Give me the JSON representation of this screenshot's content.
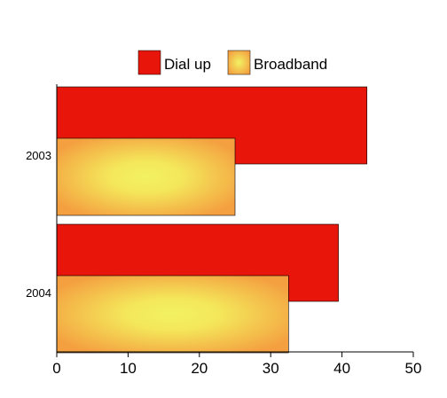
{
  "chart_data": {
    "type": "bar",
    "orientation": "horizontal",
    "categories": [
      "2003",
      "2004"
    ],
    "series": [
      {
        "name": "Dial up",
        "values": [
          43.5,
          39.5
        ],
        "color": "#e8160a"
      },
      {
        "name": "Broadband",
        "values": [
          25,
          32.5
        ],
        "color": "#f4a040",
        "highlight": "#f2f263"
      }
    ],
    "xlim": [
      0,
      50
    ],
    "xticks": [
      0,
      10,
      20,
      30,
      40,
      50
    ],
    "legend_position": "top",
    "grid": false
  }
}
